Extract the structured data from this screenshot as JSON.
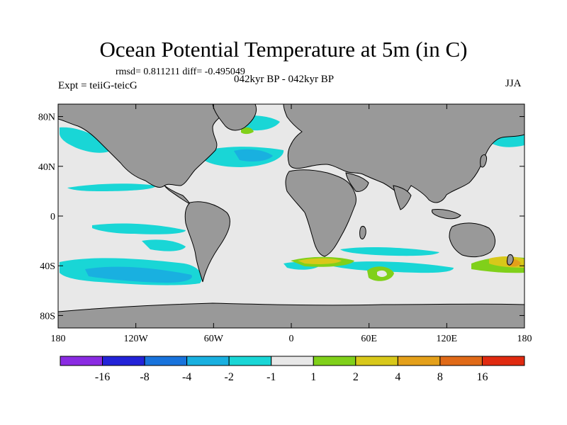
{
  "title": "Ocean Potential Temperature at 5m (in C)",
  "stats": "rmsd= 0.811211 diff= -0.495049",
  "expt": "Expt = teiiG-teicG",
  "period": "042kyr BP - 042kyr BP",
  "season": "JJA",
  "map": {
    "lat_ticks": [
      "80N",
      "40N",
      "0",
      "40S",
      "80S"
    ],
    "lat_values": [
      80,
      40,
      0,
      -40,
      -80
    ],
    "lon_ticks": [
      "180",
      "120W",
      "60W",
      "0",
      "60E",
      "120E",
      "180"
    ],
    "lon_values": [
      -180,
      -120,
      -60,
      0,
      60,
      120,
      180
    ],
    "lat_range": [
      -90,
      90
    ],
    "lon_range": [
      -180,
      180
    ],
    "land_color": "#999999",
    "neutral_ocean_color": "#e8e8e8"
  },
  "colorbar": {
    "labels": [
      "-16",
      "-8",
      "-4",
      "-2",
      "-1",
      "1",
      "2",
      "4",
      "8",
      "16"
    ],
    "colors": [
      "#8a2be2",
      "#2323d8",
      "#1873dc",
      "#19b0e0",
      "#19d6d6",
      "#e8e8e8",
      "#80d01a",
      "#d8c81a",
      "#e4a01a",
      "#e06a18",
      "#e02a10"
    ]
  }
}
